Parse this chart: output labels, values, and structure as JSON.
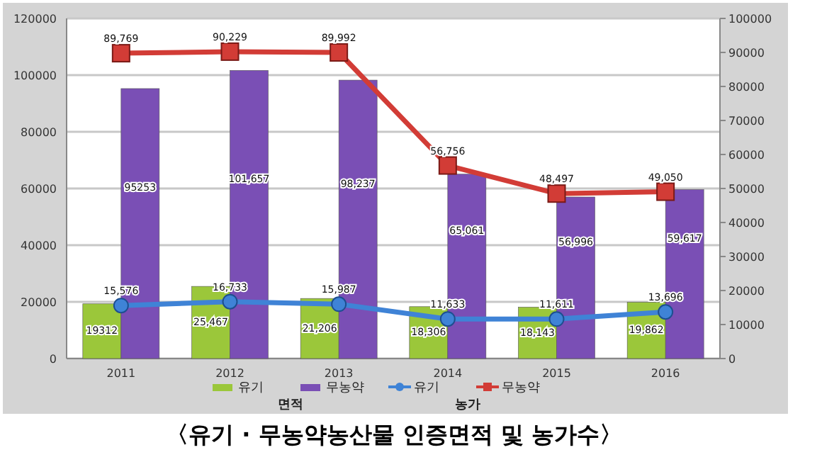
{
  "chart_data": {
    "type": "bar",
    "title": "〈유기 · 무농약농산물 인증면적 및 농가수〉",
    "categories": [
      "2011",
      "2012",
      "2013",
      "2014",
      "2015",
      "2016"
    ],
    "series": [
      {
        "name": "유기",
        "color": "#9bc73a",
        "values": [
          19312,
          25467,
          21206,
          18306,
          18143,
          19862
        ],
        "value_labels": [
          "19312",
          "25,467",
          "21,206",
          "18,306",
          "18,143",
          "19,862"
        ]
      },
      {
        "name": "무농약",
        "color": "#7a4fb5",
        "values": [
          95253,
          101657,
          98237,
          65061,
          56996,
          59617
        ],
        "value_labels": [
          "95253",
          "101,657",
          "98,237",
          "65,061",
          "56,996",
          "59,617"
        ]
      },
      {
        "name": "유기",
        "type": "line",
        "axis": "y2",
        "marker": "circle",
        "color": "#3f83d6",
        "values": [
          15576,
          16733,
          15987,
          11633,
          11611,
          13696
        ],
        "value_labels": [
          "15,576",
          "16,733",
          "15,987",
          "11,633",
          "11,611",
          "13,696"
        ]
      },
      {
        "name": "무농약",
        "type": "line",
        "axis": "y2",
        "marker": "square",
        "color": "#d23c36",
        "values": [
          89769,
          90229,
          89992,
          56756,
          48497,
          49050
        ],
        "value_labels": [
          "89,769",
          "90,229",
          "89,992",
          "56,756",
          "48,497",
          "49,050"
        ]
      }
    ],
    "ylim": [
      0,
      120000
    ],
    "yticks": [
      0,
      20000,
      40000,
      60000,
      80000,
      100000,
      120000
    ],
    "y2lim": [
      0,
      100000
    ],
    "y2ticks": [
      0,
      10000,
      20000,
      30000,
      40000,
      50000,
      60000,
      70000,
      80000,
      90000,
      100000
    ],
    "grid": "y",
    "legend": "bottom",
    "annotations": [
      "면적",
      "농가"
    ]
  }
}
